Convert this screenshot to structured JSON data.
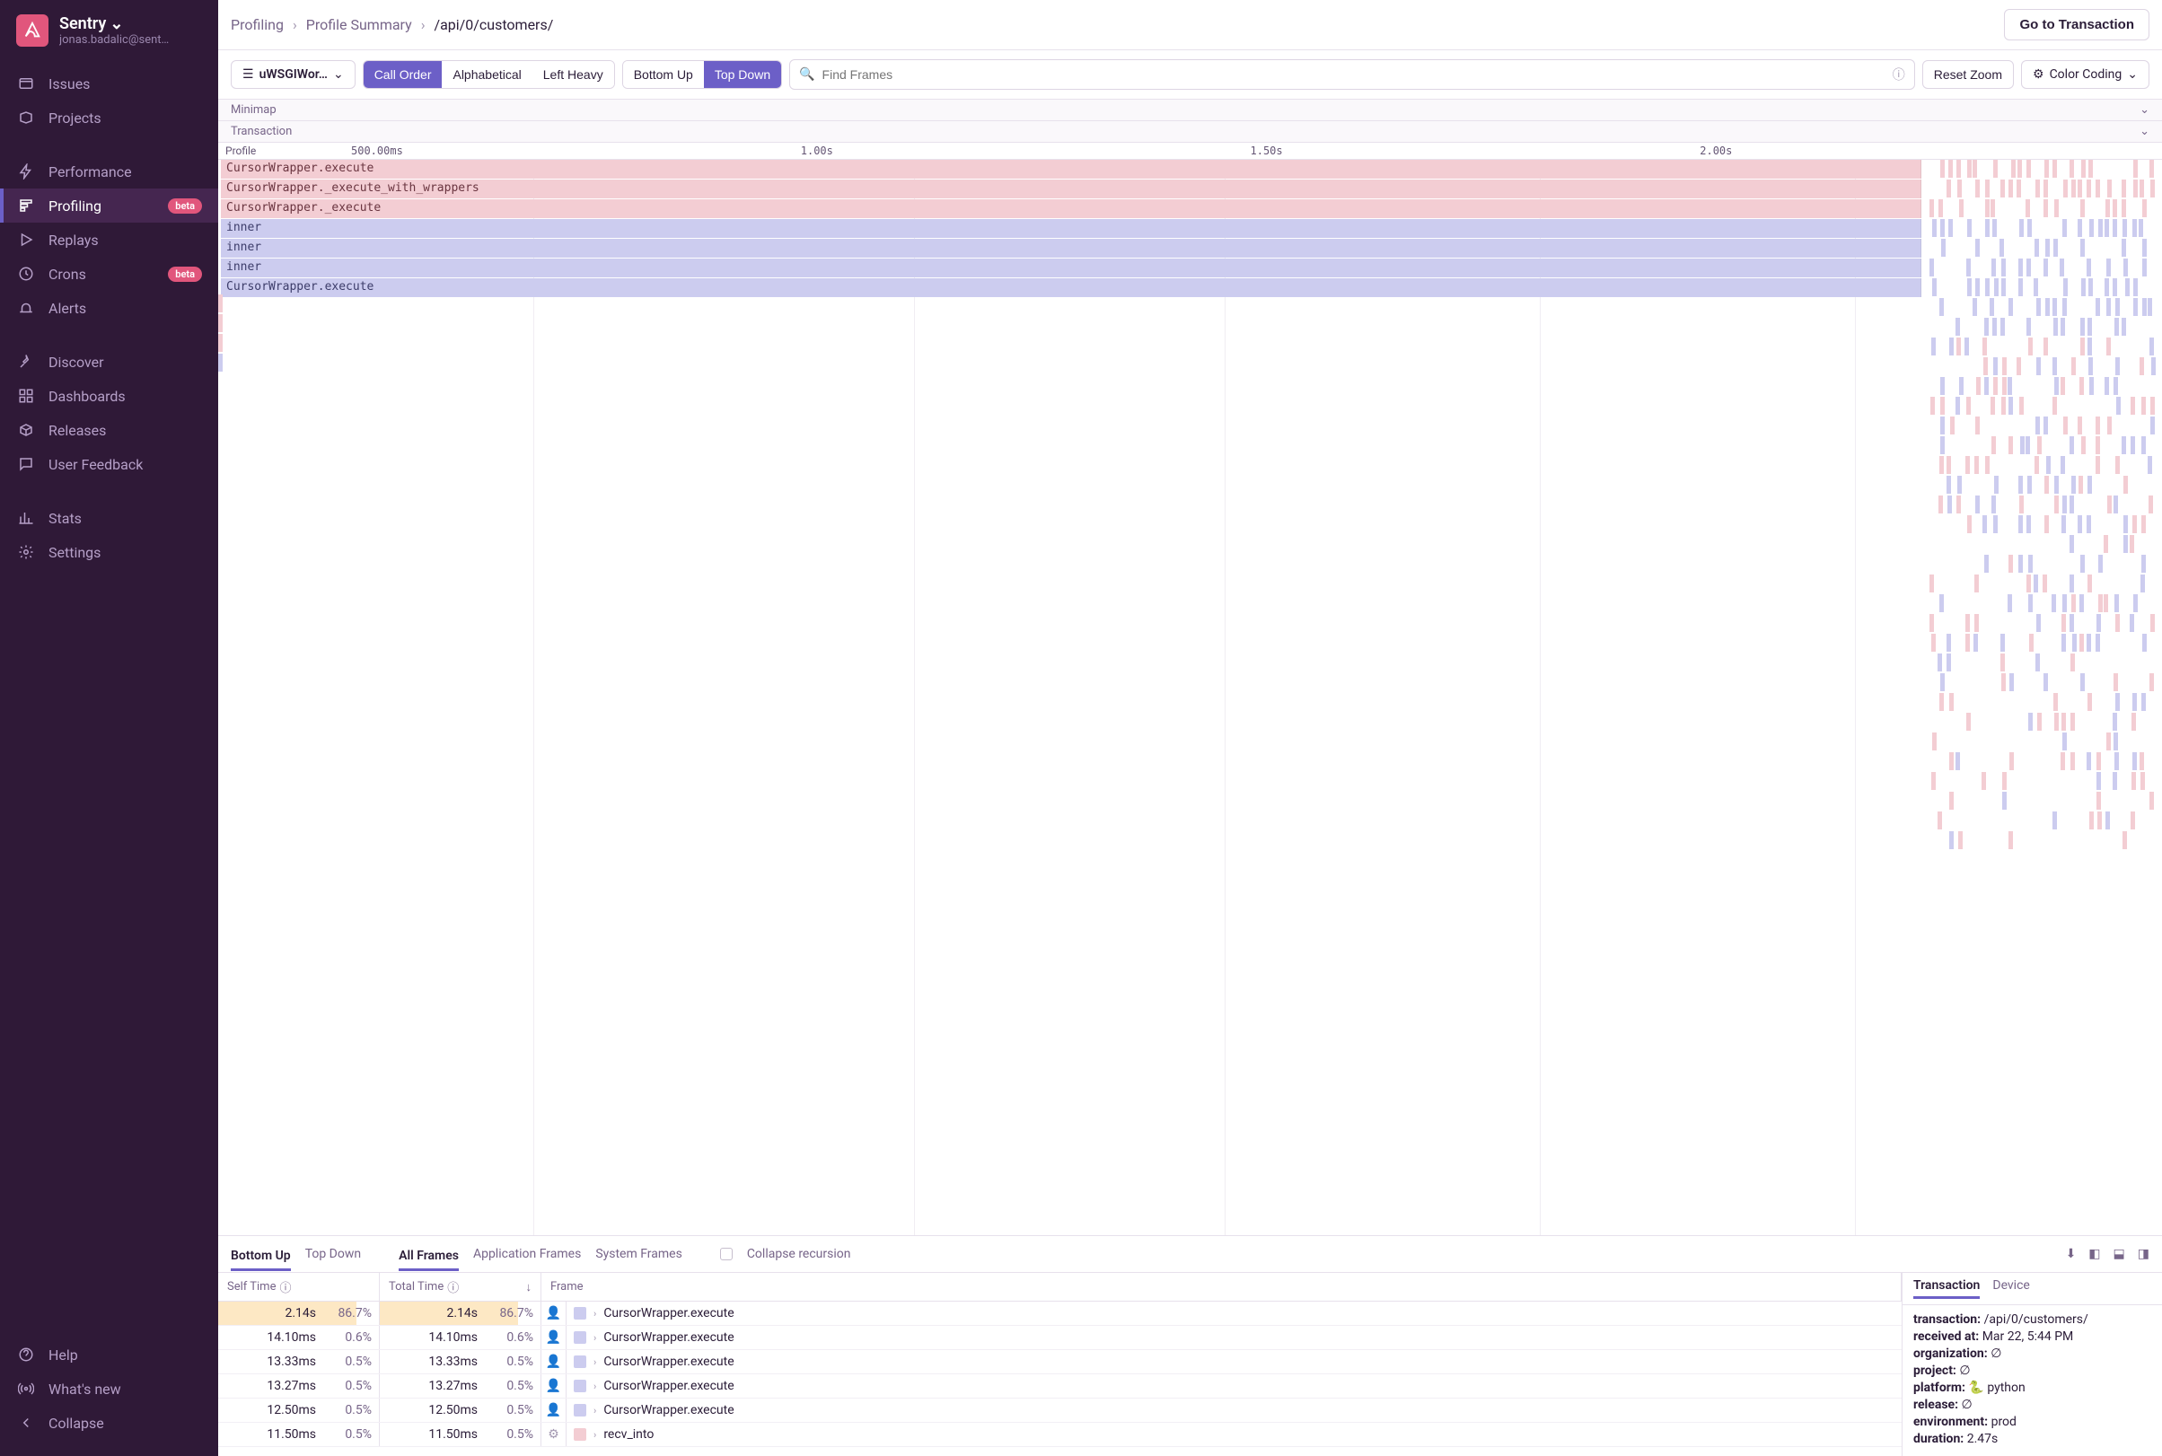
{
  "org": {
    "name": "Sentry",
    "email": "jonas.badalic@sent…"
  },
  "nav": {
    "g1": [
      {
        "label": "Issues",
        "icon": "issues"
      },
      {
        "label": "Projects",
        "icon": "projects"
      }
    ],
    "g2": [
      {
        "label": "Performance",
        "icon": "bolt"
      },
      {
        "label": "Profiling",
        "icon": "profiling",
        "active": true,
        "beta": true
      },
      {
        "label": "Replays",
        "icon": "play"
      },
      {
        "label": "Crons",
        "icon": "clock",
        "beta": true
      },
      {
        "label": "Alerts",
        "icon": "siren"
      }
    ],
    "g3": [
      {
        "label": "Discover",
        "icon": "pin"
      },
      {
        "label": "Dashboards",
        "icon": "grid"
      },
      {
        "label": "Releases",
        "icon": "package"
      },
      {
        "label": "User Feedback",
        "icon": "feedback"
      }
    ],
    "g4": [
      {
        "label": "Stats",
        "icon": "stats"
      },
      {
        "label": "Settings",
        "icon": "gear"
      }
    ],
    "footer": [
      {
        "label": "Help",
        "icon": "help"
      },
      {
        "label": "What's new",
        "icon": "broadcast"
      },
      {
        "label": "Collapse",
        "icon": "chev-left"
      }
    ]
  },
  "breadcrumb": {
    "a": "Profiling",
    "b": "Profile Summary",
    "c": "/api/0/customers/"
  },
  "cta": "Go to Transaction",
  "toolbar": {
    "thread": "uWSGIWor…",
    "sort": {
      "a": "Call Order",
      "b": "Alphabetical",
      "c": "Left Heavy"
    },
    "dir": {
      "a": "Bottom Up",
      "b": "Top Down"
    },
    "search_ph": "Find Frames",
    "reset": "Reset Zoom",
    "color": "Color Coding"
  },
  "sections": {
    "minimap": "Minimap",
    "transaction": "Transaction",
    "profile": "Profile"
  },
  "timeline": {
    "ticks": [
      "500.00ms",
      "1.00s",
      "1.50s",
      "2.00s"
    ]
  },
  "flame": {
    "colors": {
      "pink": "#f3cdd3",
      "lilac": "#ccccef"
    },
    "main_width_pct": 87.5,
    "cols_pct": [
      16.2,
      35.8,
      51.8,
      68.0,
      84.2
    ],
    "rows": [
      {
        "label": "CursorWrapper.execute",
        "color": "pink"
      },
      {
        "label": "CursorWrapper._execute_with_wrappers",
        "color": "pink"
      },
      {
        "label": "CursorWrapper._execute",
        "color": "pink"
      },
      {
        "label": "inner",
        "color": "lilac"
      },
      {
        "label": "inner",
        "color": "lilac"
      },
      {
        "label": "inner",
        "color": "lilac"
      },
      {
        "label": "CursorWrapper.execute",
        "color": "lilac"
      }
    ]
  },
  "bottom": {
    "tabs": {
      "bu": "Bottom Up",
      "td": "Top Down",
      "af": "All Frames",
      "apf": "Application Frames",
      "sf": "System Frames",
      "cr": "Collapse recursion"
    },
    "headers": {
      "self": "Self Time",
      "total": "Total Time",
      "frame": "Frame"
    },
    "rows": [
      {
        "self": "2.14s",
        "selfp": "86.7%",
        "total": "2.14s",
        "totalp": "86.7%",
        "frame": "CursorWrapper.execute",
        "sw": "#ccccef",
        "hl": true,
        "icon": "user"
      },
      {
        "self": "14.10ms",
        "selfp": "0.6%",
        "total": "14.10ms",
        "totalp": "0.6%",
        "frame": "CursorWrapper.execute",
        "sw": "#ccccef",
        "icon": "user"
      },
      {
        "self": "13.33ms",
        "selfp": "0.5%",
        "total": "13.33ms",
        "totalp": "0.5%",
        "frame": "CursorWrapper.execute",
        "sw": "#ccccef",
        "icon": "user"
      },
      {
        "self": "13.27ms",
        "selfp": "0.5%",
        "total": "13.27ms",
        "totalp": "0.5%",
        "frame": "CursorWrapper.execute",
        "sw": "#ccccef",
        "icon": "user"
      },
      {
        "self": "12.50ms",
        "selfp": "0.5%",
        "total": "12.50ms",
        "totalp": "0.5%",
        "frame": "CursorWrapper.execute",
        "sw": "#ccccef",
        "icon": "user"
      },
      {
        "self": "11.50ms",
        "selfp": "0.5%",
        "total": "11.50ms",
        "totalp": "0.5%",
        "frame": "recv_into",
        "sw": "#f3cdd3",
        "icon": "gear"
      }
    ],
    "side": {
      "tabs": {
        "t": "Transaction",
        "d": "Device"
      },
      "meta": {
        "transaction_k": "transaction:",
        "transaction_v": "/api/0/customers/",
        "received_k": "received at:",
        "received_v": "Mar 22, 5:44 PM",
        "org_k": "organization:",
        "org_v": "∅",
        "project_k": "project:",
        "project_v": "∅",
        "platform_k": "platform:",
        "platform_v": "python",
        "release_k": "release:",
        "release_v": "∅",
        "env_k": "environment:",
        "env_v": "prod",
        "dur_k": "duration:",
        "dur_v": "2.47s"
      }
    }
  }
}
